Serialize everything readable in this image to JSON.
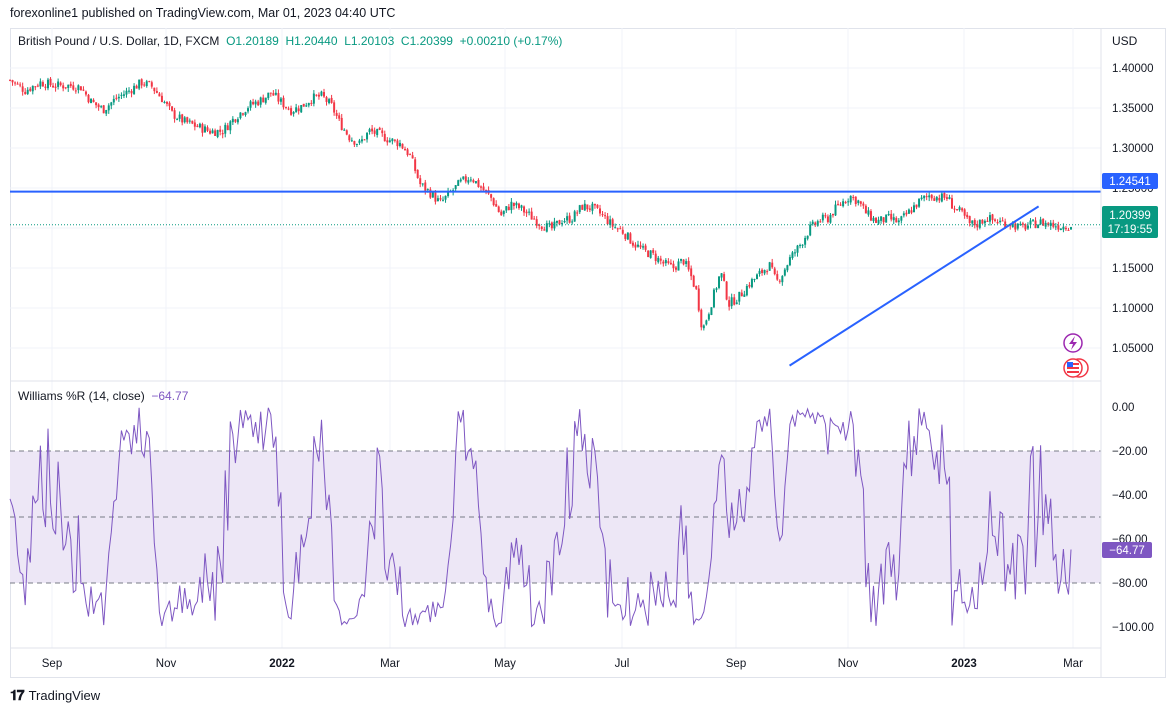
{
  "header": {
    "published": "forexonline1 published on TradingView.com, Mar 01, 2023 04:40 UTC"
  },
  "legend": {
    "symbol": "British Pound / U.S. Dollar, 1D, FXCM",
    "open": "O1.20189",
    "high": "H1.20440",
    "low": "L1.20103",
    "close": "C1.20399",
    "change": "+0.00210 (+0.17%)"
  },
  "currency": "USD",
  "indicator": {
    "name": "Williams %R (14, close)",
    "value": "−64.77"
  },
  "badges": {
    "resistance": "1.24541",
    "last_price": "1.20399",
    "countdown": "17:19:55",
    "indicator_last": "−64.77"
  },
  "footer": {
    "brand": "TradingView"
  },
  "colors": {
    "up": "#089981",
    "down": "#f23645",
    "line": "#2962ff",
    "wpr": "#7e57c2",
    "band": "#ede7f6"
  },
  "chart_data": [
    {
      "type": "candlestick",
      "title": "British Pound / U.S. Dollar, 1D, FXCM",
      "x_ticks": [
        "Sep",
        "Nov",
        "2022",
        "Mar",
        "May",
        "Jul",
        "Sep",
        "Nov",
        "2023",
        "Mar"
      ],
      "y_ticks": [
        "1.05000",
        "1.10000",
        "1.15000",
        "1.20000",
        "1.25000",
        "1.30000",
        "1.35000",
        "1.40000"
      ],
      "ylim": [
        1.01,
        1.41
      ],
      "close_path": [
        [
          0,
          1.385
        ],
        [
          15,
          1.372
        ],
        [
          30,
          1.382
        ],
        [
          45,
          1.378
        ],
        [
          60,
          1.378
        ],
        [
          70,
          1.376
        ],
        [
          80,
          1.358
        ],
        [
          92,
          1.348
        ],
        [
          105,
          1.362
        ],
        [
          118,
          1.372
        ],
        [
          130,
          1.382
        ],
        [
          140,
          1.377
        ],
        [
          150,
          1.362
        ],
        [
          160,
          1.343
        ],
        [
          172,
          1.333
        ],
        [
          185,
          1.327
        ],
        [
          197,
          1.321
        ],
        [
          210,
          1.321
        ],
        [
          222,
          1.338
        ],
        [
          235,
          1.352
        ],
        [
          248,
          1.36
        ],
        [
          258,
          1.369
        ],
        [
          268,
          1.357
        ],
        [
          278,
          1.347
        ],
        [
          288,
          1.352
        ],
        [
          298,
          1.362
        ],
        [
          308,
          1.365
        ],
        [
          318,
          1.352
        ],
        [
          325,
          1.333
        ],
        [
          335,
          1.314
        ],
        [
          345,
          1.305
        ],
        [
          355,
          1.321
        ],
        [
          365,
          1.317
        ],
        [
          375,
          1.31
        ],
        [
          385,
          1.306
        ],
        [
          395,
          1.291
        ],
        [
          405,
          1.255
        ],
        [
          415,
          1.244
        ],
        [
          425,
          1.231
        ],
        [
          435,
          1.244
        ],
        [
          445,
          1.257
        ],
        [
          455,
          1.264
        ],
        [
          465,
          1.251
        ],
        [
          475,
          1.238
        ],
        [
          485,
          1.216
        ],
        [
          495,
          1.23
        ],
        [
          505,
          1.224
        ],
        [
          515,
          1.214
        ],
        [
          525,
          1.204
        ],
        [
          535,
          1.199
        ],
        [
          545,
          1.21
        ],
        [
          555,
          1.212
        ],
        [
          565,
          1.227
        ],
        [
          575,
          1.225
        ],
        [
          585,
          1.216
        ],
        [
          595,
          1.203
        ],
        [
          605,
          1.196
        ],
        [
          615,
          1.182
        ],
        [
          625,
          1.172
        ],
        [
          635,
          1.166
        ],
        [
          645,
          1.156
        ],
        [
          655,
          1.15
        ],
        [
          665,
          1.16
        ],
        [
          672,
          1.142
        ],
        [
          678,
          1.121
        ],
        [
          684,
          1.072
        ],
        [
          690,
          1.095
        ],
        [
          696,
          1.12
        ],
        [
          702,
          1.145
        ],
        [
          710,
          1.105
        ],
        [
          720,
          1.114
        ],
        [
          730,
          1.13
        ],
        [
          740,
          1.142
        ],
        [
          750,
          1.154
        ],
        [
          757,
          1.132
        ],
        [
          763,
          1.143
        ],
        [
          770,
          1.161
        ],
        [
          780,
          1.178
        ],
        [
          790,
          1.199
        ],
        [
          800,
          1.21
        ],
        [
          808,
          1.212
        ],
        [
          814,
          1.222
        ],
        [
          822,
          1.232
        ],
        [
          830,
          1.24
        ],
        [
          838,
          1.233
        ],
        [
          846,
          1.218
        ],
        [
          856,
          1.208
        ],
        [
          868,
          1.212
        ],
        [
          878,
          1.207
        ],
        [
          888,
          1.22
        ],
        [
          898,
          1.233
        ],
        [
          908,
          1.241
        ],
        [
          918,
          1.238
        ],
        [
          926,
          1.238
        ],
        [
          932,
          1.226
        ],
        [
          940,
          1.218
        ],
        [
          948,
          1.205
        ],
        [
          956,
          1.205
        ],
        [
          964,
          1.213
        ],
        [
          972,
          1.209
        ],
        [
          980,
          1.207
        ],
        [
          988,
          1.206
        ],
        [
          998,
          1.2
        ],
        [
          1008,
          1.204
        ],
        [
          1018,
          1.207
        ],
        [
          1030,
          1.204
        ],
        [
          1040,
          1.202
        ],
        [
          1048,
          1.204
        ]
      ],
      "lines": [
        {
          "name": "",
          "kind": "horizontal",
          "value": 1.24541
        },
        {
          "name": "",
          "kind": "trendline",
          "points": [
            [
              770,
              1.028
            ],
            [
              1016,
              1.227
            ]
          ]
        }
      ],
      "last": 1.20399
    },
    {
      "type": "line",
      "title": "Williams %R (14, close)",
      "y_ticks": [
        "0.00",
        "−20.00",
        "−40.00",
        "−60.00",
        "−80.00",
        "−100.00"
      ],
      "ylim": [
        -100,
        0
      ],
      "bands": [
        -20,
        -50,
        -80
      ],
      "last": -64.77
    }
  ]
}
